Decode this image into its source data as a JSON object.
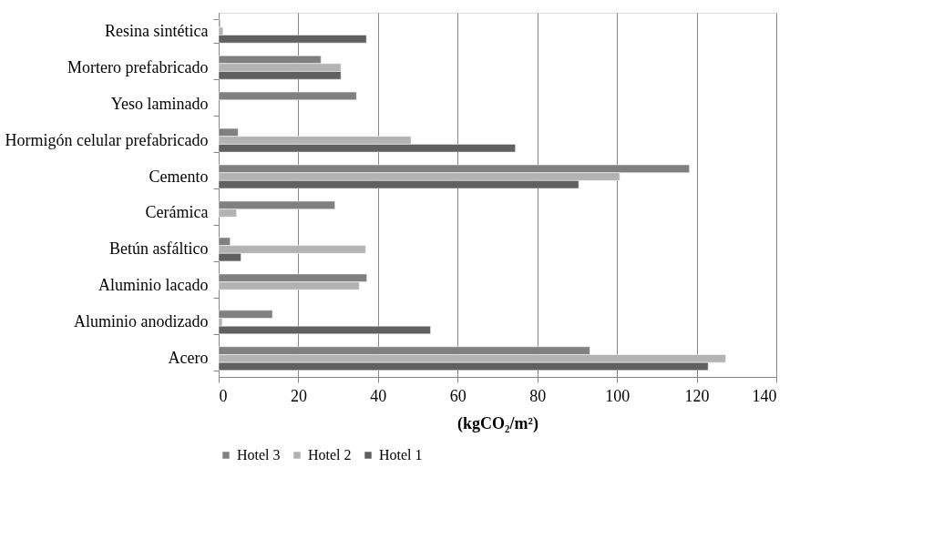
{
  "chart_data": {
    "type": "bar",
    "orientation": "horizontal",
    "xlabel": "(kgCO₂/m²)",
    "categories": [
      "Resina sintética",
      "Mortero prefabricado",
      "Yeso laminado",
      "Hormigón celular prefabricado",
      "Cemento",
      "Cerámica",
      "Betún asfáltico",
      "Aluminio lacado",
      "Aluminio anodizado",
      "Acero"
    ],
    "series": [
      {
        "name": "Hotel 3",
        "color": "#808080",
        "values": [
          0.4,
          25.7,
          34.6,
          4.9,
          118.2,
          29.2,
          2.9,
          37.2,
          13.5,
          93.2
        ]
      },
      {
        "name": "Hotel 2",
        "color": "#b3b3b3",
        "values": [
          1.1,
          30.7,
          null,
          48.3,
          100.7,
          4.5,
          36.9,
          35.3,
          0.9,
          127.3
        ]
      },
      {
        "name": "Hotel 1",
        "color": "#606060",
        "values": [
          37.1,
          30.7,
          null,
          74.5,
          90.4,
          null,
          5.6,
          null,
          53.2,
          122.9
        ]
      }
    ],
    "xlim": [
      0,
      140
    ],
    "xticks": [
      0,
      20,
      40,
      60,
      80,
      100,
      120,
      140
    ],
    "grid": "x",
    "legend": "bottom"
  }
}
